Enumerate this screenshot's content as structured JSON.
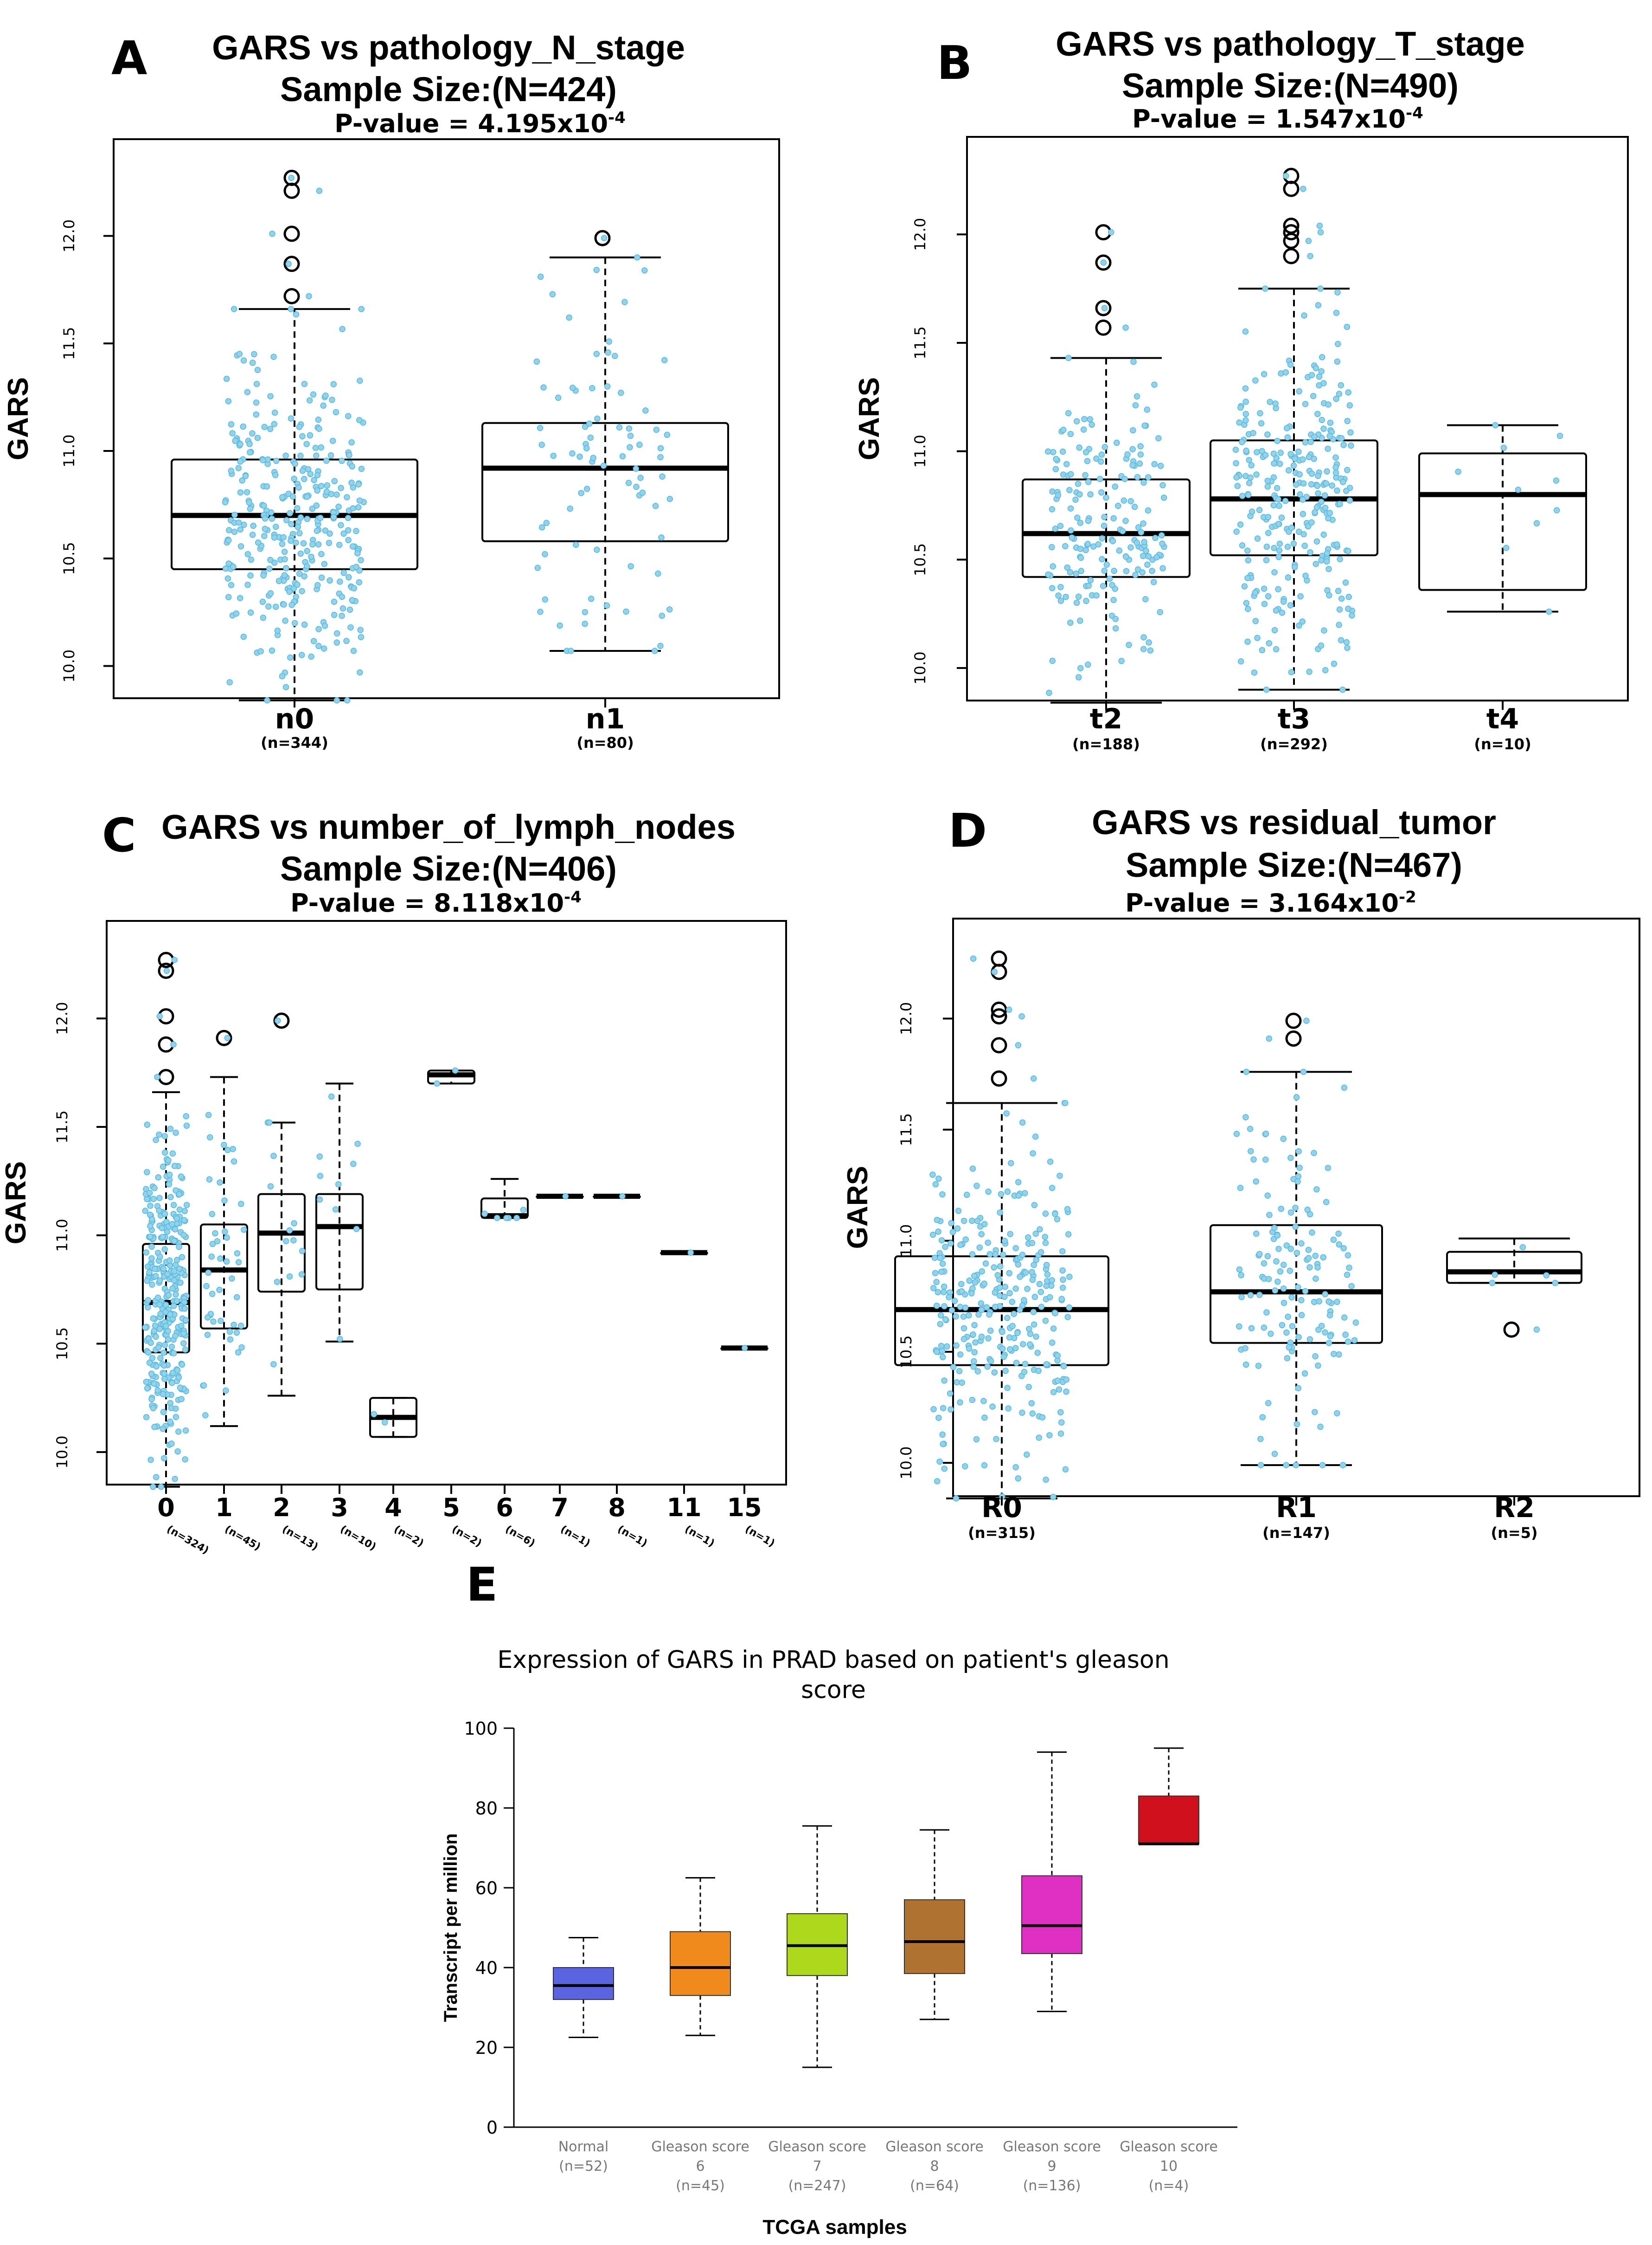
{
  "figure_labels": [
    "A",
    "B",
    "C",
    "D",
    "E"
  ],
  "colors": {
    "dot": "#8fd3ec",
    "dot_stroke": "#5bb8dc",
    "box_stroke": "#000000",
    "e_series": [
      "#5a64e0",
      "#f08a1c",
      "#add81c",
      "#b07230",
      "#e030c4",
      "#d0101c"
    ]
  },
  "chart_data": [
    {
      "type": "box",
      "panel": "A",
      "title": "GARS vs pathology_N_stage",
      "subtitle": "Sample Size:(N=424)",
      "pvalue_text": "P-value = 4.195x10",
      "pvalue_exp": "-4",
      "ylabel": "GARS",
      "ylim": [
        9.85,
        12.45
      ],
      "yticks": [
        "10.0",
        "10.5",
        "11.0",
        "11.5",
        "12.0"
      ],
      "categories": [
        "n0",
        "n1"
      ],
      "counts": [
        "(n=344)",
        "(n=80)"
      ],
      "boxes": [
        {
          "q1": 10.45,
          "median": 10.7,
          "q3": 10.96,
          "whislo": 9.84,
          "whishi": 11.66,
          "n": 344,
          "outliers": [
            11.72,
            11.87,
            12.01,
            12.21,
            12.27
          ]
        },
        {
          "q1": 10.58,
          "median": 10.92,
          "q3": 11.13,
          "whislo": 10.07,
          "whishi": 11.9,
          "n": 80,
          "outliers": [
            11.99
          ]
        }
      ]
    },
    {
      "type": "box",
      "panel": "B",
      "title": "GARS vs pathology_T_stage",
      "subtitle": "Sample Size:(N=490)",
      "pvalue_text": "P-value = 1.547x10",
      "pvalue_exp": "-4",
      "ylabel": "GARS",
      "ylim": [
        9.85,
        12.45
      ],
      "yticks": [
        "10.0",
        "10.5",
        "11.0",
        "11.5",
        "12.0"
      ],
      "categories": [
        "t2",
        "t3",
        "t4"
      ],
      "counts": [
        "(n=188)",
        "(n=292)",
        "(n=10)"
      ],
      "boxes": [
        {
          "q1": 10.42,
          "median": 10.62,
          "q3": 10.87,
          "whislo": 9.84,
          "whishi": 11.43,
          "n": 188,
          "outliers": [
            11.57,
            11.66,
            11.87,
            12.01
          ]
        },
        {
          "q1": 10.52,
          "median": 10.78,
          "q3": 11.05,
          "whislo": 9.9,
          "whishi": 11.75,
          "n": 292,
          "outliers": [
            11.9,
            11.97,
            12.01,
            12.04,
            12.21,
            12.27
          ]
        },
        {
          "q1": 10.36,
          "median": 10.8,
          "q3": 10.99,
          "whislo": 10.26,
          "whishi": 11.12,
          "n": 10,
          "outliers": []
        }
      ]
    },
    {
      "type": "box",
      "panel": "C",
      "title": "GARS vs number_of_lymph_nodes",
      "subtitle": "Sample Size:(N=406)",
      "pvalue_text": "P-value = 8.118x10",
      "pvalue_exp": "-4",
      "ylabel": "GARS",
      "ylim": [
        9.85,
        12.45
      ],
      "yticks": [
        "10.0",
        "10.5",
        "11.0",
        "11.5",
        "12.0"
      ],
      "categories": [
        "0",
        "1",
        "2",
        "3",
        "4",
        "5",
        "6",
        "7",
        "8",
        "11",
        "15"
      ],
      "counts": [
        "(n=324)",
        "(n=45)",
        "(n=13)",
        "(n=10)",
        "(n=2)",
        "(n=2)",
        "(n=6)",
        "(n=1)",
        "(n=1)",
        "(n=1)",
        "(n=1)"
      ],
      "boxes": [
        {
          "q1": 10.46,
          "median": 10.69,
          "q3": 10.96,
          "whislo": 9.84,
          "whishi": 11.66,
          "n": 324,
          "outliers": [
            11.73,
            11.88,
            12.01,
            12.22,
            12.27
          ]
        },
        {
          "q1": 10.57,
          "median": 10.84,
          "q3": 11.05,
          "whislo": 10.12,
          "whishi": 11.73,
          "n": 45,
          "outliers": [
            11.91
          ]
        },
        {
          "q1": 10.74,
          "median": 11.01,
          "q3": 11.19,
          "whislo": 10.26,
          "whishi": 11.52,
          "n": 13,
          "outliers": [
            11.99
          ]
        },
        {
          "q1": 10.75,
          "median": 11.04,
          "q3": 11.19,
          "whislo": 10.51,
          "whishi": 11.7,
          "n": 10,
          "outliers": []
        },
        {
          "q1": 10.07,
          "median": 10.16,
          "q3": 10.25,
          "whislo": 10.07,
          "whishi": 10.25,
          "n": 2,
          "outliers": []
        },
        {
          "q1": 11.7,
          "median": 11.74,
          "q3": 11.76,
          "whislo": 11.7,
          "whishi": 11.76,
          "n": 2,
          "outliers": []
        },
        {
          "q1": 11.08,
          "median": 11.09,
          "q3": 11.17,
          "whislo": 11.08,
          "whishi": 11.26,
          "n": 6,
          "outliers": []
        },
        {
          "q1": 11.18,
          "median": 11.18,
          "q3": 11.18,
          "whislo": 11.18,
          "whishi": 11.18,
          "n": 1,
          "outliers": []
        },
        {
          "q1": 11.18,
          "median": 11.18,
          "q3": 11.18,
          "whislo": 11.18,
          "whishi": 11.18,
          "n": 1,
          "outliers": []
        },
        {
          "q1": 10.92,
          "median": 10.92,
          "q3": 10.92,
          "whislo": 10.92,
          "whishi": 10.92,
          "n": 1,
          "outliers": []
        },
        {
          "q1": 10.48,
          "median": 10.48,
          "q3": 10.48,
          "whislo": 10.48,
          "whishi": 10.48,
          "n": 1,
          "outliers": []
        }
      ]
    },
    {
      "type": "box",
      "panel": "D",
      "title": "GARS vs residual_tumor",
      "subtitle": "Sample Size:(N=467)",
      "pvalue_text": "P-value = 3.164x10",
      "pvalue_exp": "-2",
      "ylabel": "GARS",
      "ylim": [
        9.85,
        12.45
      ],
      "yticks": [
        "10.0",
        "10.5",
        "11.0",
        "11.5",
        "12.0"
      ],
      "categories": [
        "R0",
        "R1",
        "R2"
      ],
      "counts": [
        "(n=315)",
        "(n=147)",
        "(n=5)"
      ],
      "boxes": [
        {
          "q1": 10.44,
          "median": 10.69,
          "q3": 10.93,
          "whislo": 9.84,
          "whishi": 11.62,
          "n": 315,
          "outliers": [
            11.73,
            11.88,
            12.01,
            12.04,
            12.21,
            12.27
          ]
        },
        {
          "q1": 10.54,
          "median": 10.77,
          "q3": 11.07,
          "whislo": 9.99,
          "whishi": 11.76,
          "n": 147,
          "outliers": [
            11.91,
            11.99
          ]
        },
        {
          "q1": 10.81,
          "median": 10.86,
          "q3": 10.95,
          "whislo": 10.81,
          "whishi": 11.01,
          "n": 5,
          "outliers": [
            10.6
          ]
        }
      ]
    },
    {
      "type": "box",
      "panel": "E",
      "title_lines": [
        "Expression of GARS in PRAD based on patient's gleason",
        "score"
      ],
      "ylabel": "Transcript per million",
      "xlabel": "TCGA samples",
      "ylim": [
        0,
        100
      ],
      "yticks": [
        "0",
        "20",
        "40",
        "60",
        "80",
        "100"
      ],
      "categories": [
        [
          "Normal",
          "(n=52)"
        ],
        [
          "Gleason score",
          "6",
          "(n=45)"
        ],
        [
          "Gleason score",
          "7",
          "(n=247)"
        ],
        [
          "Gleason score",
          "8",
          "(n=64)"
        ],
        [
          "Gleason score",
          "9",
          "(n=136)"
        ],
        [
          "Gleason score",
          "10",
          "(n=4)"
        ]
      ],
      "boxes": [
        {
          "q1": 32,
          "median": 35.5,
          "q3": 40,
          "whislo": 22.5,
          "whishi": 47.5
        },
        {
          "q1": 33,
          "median": 40,
          "q3": 49,
          "whislo": 23,
          "whishi": 62.5
        },
        {
          "q1": 38,
          "median": 45.5,
          "q3": 53.5,
          "whislo": 15,
          "whishi": 75.5
        },
        {
          "q1": 38.5,
          "median": 46.5,
          "q3": 57,
          "whislo": 27,
          "whishi": 74.5
        },
        {
          "q1": 43.5,
          "median": 50.5,
          "q3": 63,
          "whislo": 29,
          "whishi": 94
        },
        {
          "q1": 71,
          "median": 71,
          "q3": 83,
          "whislo": 71,
          "whishi": 95
        }
      ]
    }
  ]
}
